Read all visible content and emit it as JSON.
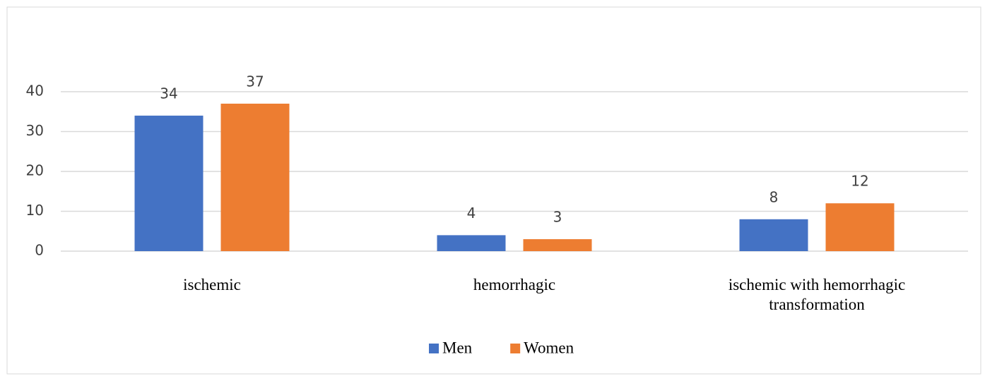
{
  "chart_data": {
    "type": "bar",
    "categories": [
      "ischemic",
      "hemorrhagic",
      "ischemic with hemorrhagic transformation"
    ],
    "series": [
      {
        "name": "Men",
        "color": "#4472c4",
        "values": [
          34,
          4,
          8
        ]
      },
      {
        "name": "Women",
        "color": "#ed7d31",
        "values": [
          37,
          3,
          12
        ]
      }
    ],
    "ylim": [
      0,
      40
    ],
    "yticks": [
      0,
      10,
      20,
      30,
      40
    ],
    "grid": true,
    "legend": "bottom"
  }
}
